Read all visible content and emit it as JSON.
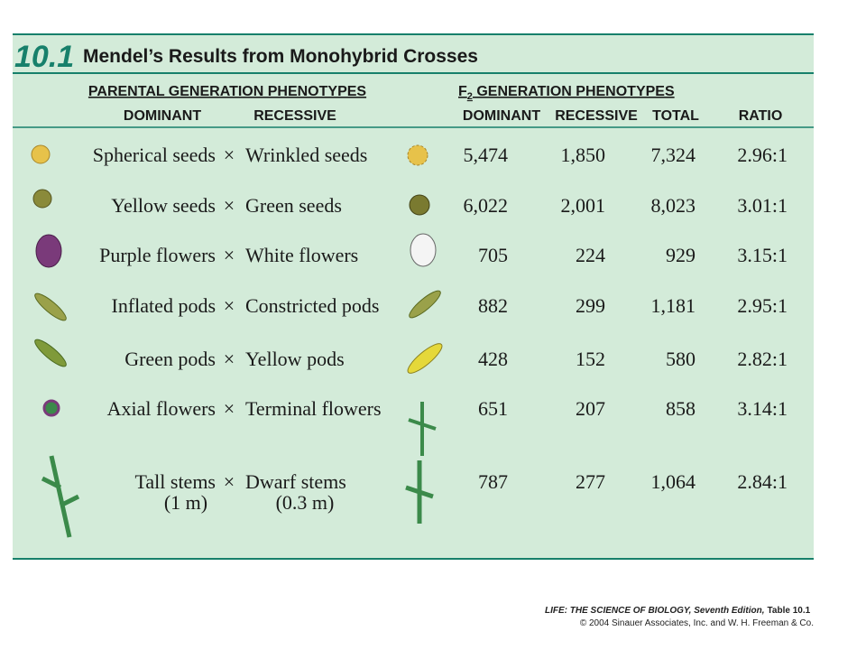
{
  "table_number": "10.1",
  "title": "Mendel’s Results from Monohybrid Crosses",
  "group_headers": {
    "parental": "PARENTAL GENERATION PHENOTYPES",
    "f2": {
      "prefix": "F",
      "sub": "2",
      "rest": " GENERATION PHENOTYPES"
    }
  },
  "columns": [
    "DOMINANT",
    "RECESSIVE",
    "DOMINANT",
    "RECESSIVE",
    "TOTAL",
    "RATIO"
  ],
  "cross": "×",
  "rows": [
    {
      "dominant": [
        "Spherical seeds"
      ],
      "recessive": [
        "Wrinkled seeds"
      ],
      "f2_dominant": "5,474",
      "f2_recessive": "1,850",
      "total": "7,324",
      "ratio": "2.96:1"
    },
    {
      "dominant": [
        "Yellow seeds"
      ],
      "recessive": [
        "Green seeds"
      ],
      "f2_dominant": "6,022",
      "f2_recessive": "2,001",
      "total": "8,023",
      "ratio": "3.01:1"
    },
    {
      "dominant": [
        "Purple flowers"
      ],
      "recessive": [
        "White flowers"
      ],
      "f2_dominant": "705",
      "f2_recessive": "224",
      "total": "929",
      "ratio": "3.15:1"
    },
    {
      "dominant": [
        "Inflated pods"
      ],
      "recessive": [
        "Constricted pods"
      ],
      "f2_dominant": "882",
      "f2_recessive": "299",
      "total": "1,181",
      "ratio": "2.95:1"
    },
    {
      "dominant": [
        "Green pods"
      ],
      "recessive": [
        "Yellow pods"
      ],
      "f2_dominant": "428",
      "f2_recessive": "152",
      "total": "580",
      "ratio": "2.82:1"
    },
    {
      "dominant": [
        "Axial flowers"
      ],
      "recessive": [
        "Terminal flowers"
      ],
      "f2_dominant": "651",
      "f2_recessive": "207",
      "total": "858",
      "ratio": "3.14:1"
    },
    {
      "dominant": [
        "Tall stems",
        "(1 m)"
      ],
      "recessive": [
        "Dwarf stems",
        "(0.3 m)"
      ],
      "f2_dominant": "787",
      "f2_recessive": "277",
      "total": "1,064",
      "ratio": "2.84:1"
    }
  ],
  "source": "LIFE: THE SCIENCE OF BIOLOGY, Seventh Edition,",
  "source_ref": "Table 10.1",
  "copyright": "© 2004 Sinauer Associates, Inc. and W. H. Freeman & Co."
}
